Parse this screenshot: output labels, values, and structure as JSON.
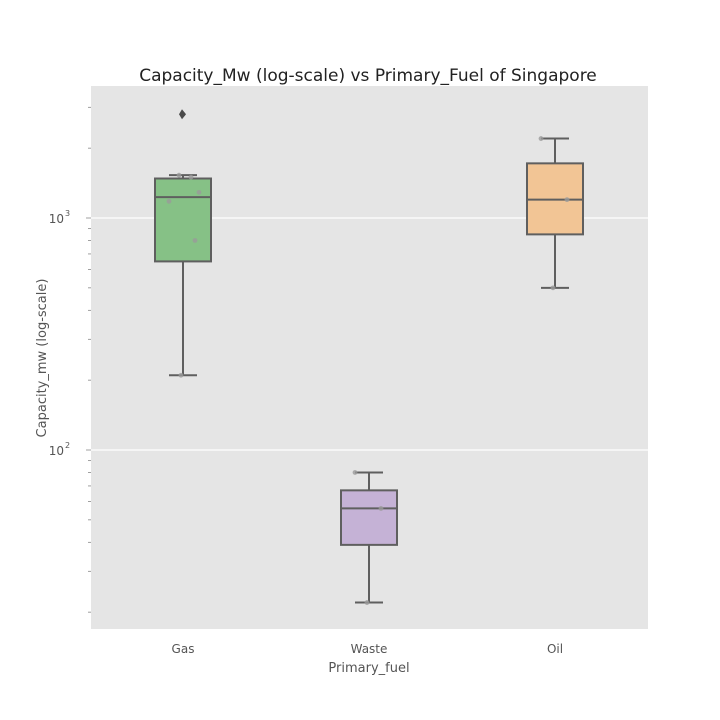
{
  "chart_data": {
    "type": "box",
    "title": "Capacity_Mw (log-scale) vs  Primary_Fuel of Singapore",
    "xlabel": "Primary_fuel",
    "ylabel": "Capacity_mw (log-scale)",
    "yscale": "log",
    "ylim": [
      18,
      3800
    ],
    "y_ticks": [
      {
        "base": "10",
        "exp": "2",
        "value": 100
      },
      {
        "base": "10",
        "exp": "3",
        "value": 1000
      }
    ],
    "grid": true,
    "categories": [
      "Gas",
      "Waste",
      "Oil"
    ],
    "boxes": [
      {
        "category": "Gas",
        "color": "#86c186",
        "whisker_low": 210,
        "q1": 650,
        "median": 1230,
        "q3": 1480,
        "whisker_high": 1530,
        "outliers": [
          2800
        ],
        "points": [
          210,
          800,
          1180,
          1290,
          1500,
          1530,
          2800
        ]
      },
      {
        "category": "Waste",
        "color": "#c5b2d6",
        "whisker_low": 22,
        "q1": 39,
        "median": 56,
        "q3": 67,
        "whisker_high": 80,
        "outliers": [],
        "points": [
          22,
          56,
          80
        ]
      },
      {
        "category": "Oil",
        "color": "#f2c595",
        "whisker_low": 500,
        "q1": 850,
        "median": 1200,
        "q3": 1720,
        "whisker_high": 2200,
        "outliers": [],
        "points": [
          500,
          1200,
          2200
        ]
      }
    ]
  }
}
